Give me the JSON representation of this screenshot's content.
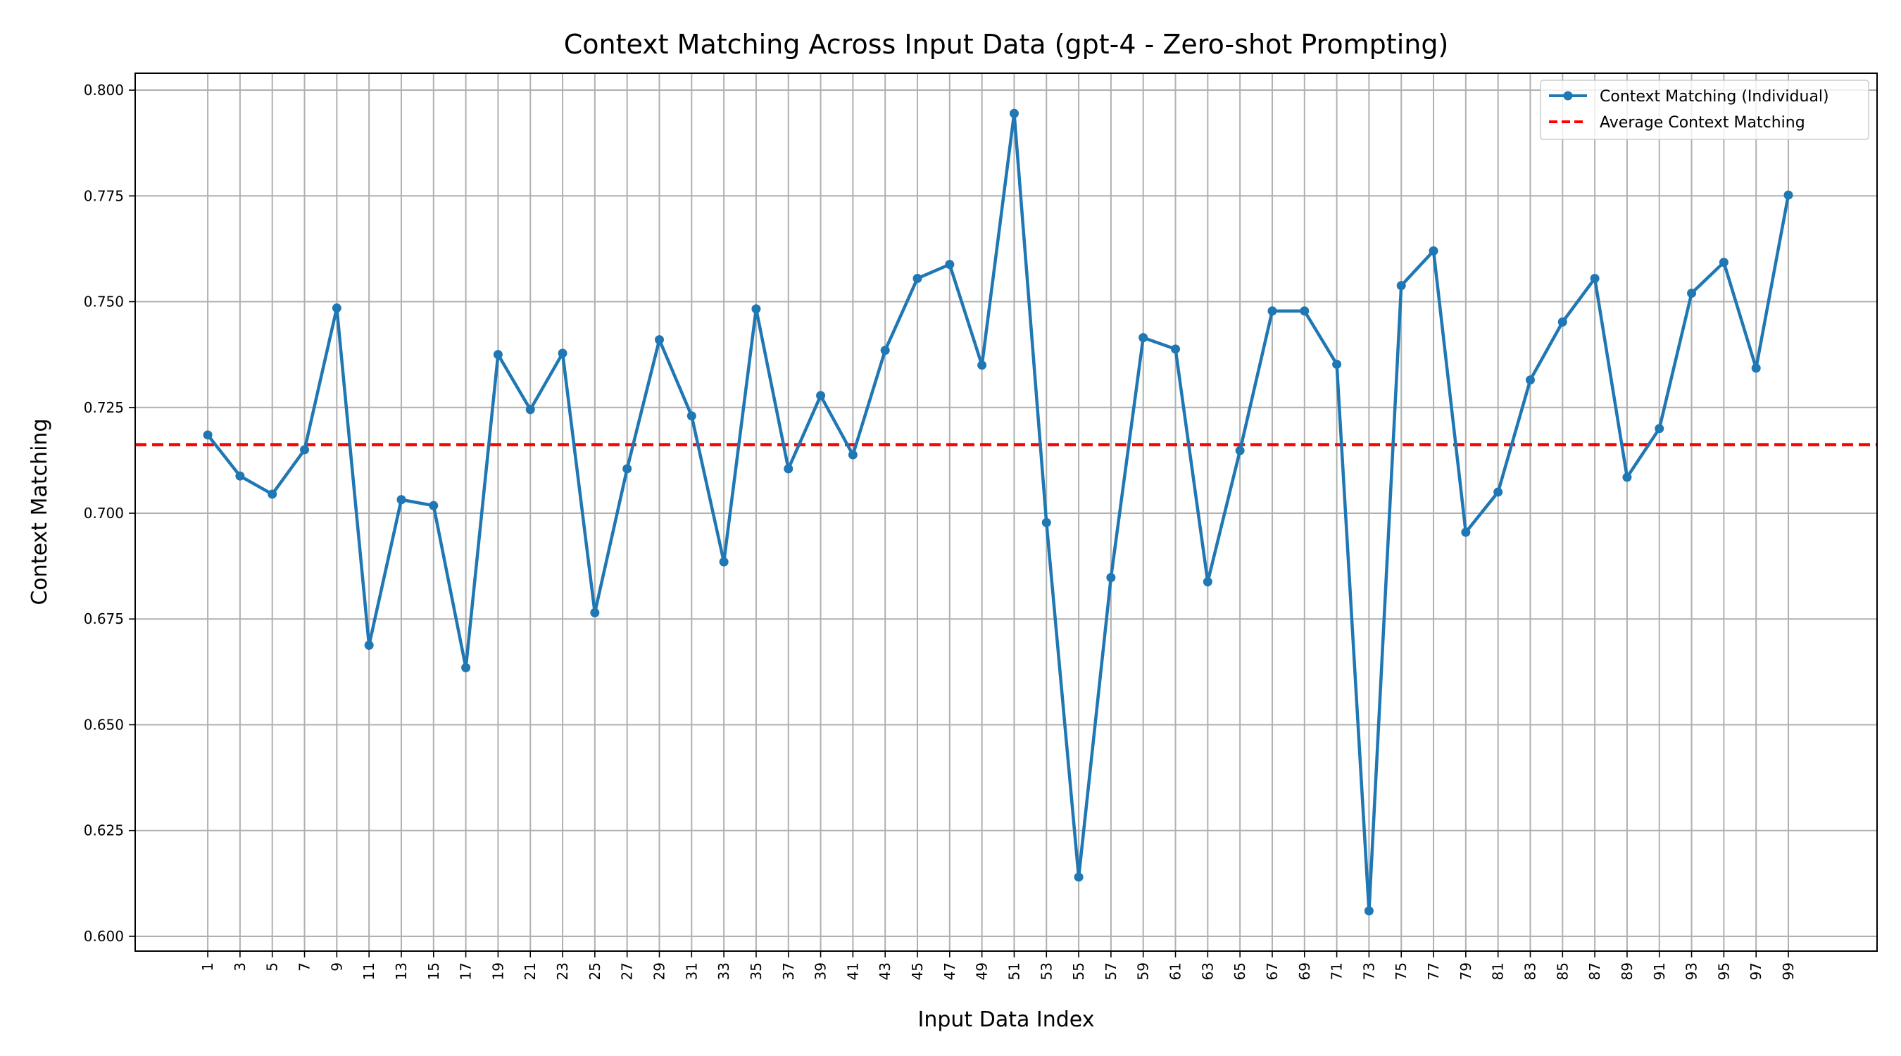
{
  "chart_data": {
    "type": "line",
    "title": "Context Matching Across Input Data (gpt-4 - Zero-shot Prompting)",
    "xlabel": "Input Data Index",
    "ylabel": "Context Matching",
    "x": [
      1,
      3,
      5,
      7,
      9,
      11,
      13,
      15,
      17,
      19,
      21,
      23,
      25,
      27,
      29,
      31,
      33,
      35,
      37,
      39,
      41,
      43,
      45,
      47,
      49,
      51,
      53,
      55,
      57,
      59,
      61,
      63,
      65,
      67,
      69,
      71,
      73,
      75,
      77,
      79,
      81,
      83,
      85,
      87,
      89,
      91,
      93,
      95,
      97,
      99
    ],
    "x_ticks": [
      "1",
      "3",
      "5",
      "7",
      "9",
      "11",
      "13",
      "15",
      "17",
      "19",
      "21",
      "23",
      "25",
      "27",
      "29",
      "31",
      "33",
      "35",
      "37",
      "39",
      "41",
      "43",
      "45",
      "47",
      "49",
      "51",
      "53",
      "55",
      "57",
      "59",
      "61",
      "63",
      "65",
      "67",
      "69",
      "71",
      "73",
      "75",
      "77",
      "79",
      "81",
      "83",
      "85",
      "87",
      "89",
      "91",
      "93",
      "95",
      "97",
      "99"
    ],
    "xlim": [
      -3.5,
      104.5
    ],
    "ylim": [
      0.5965,
      0.804
    ],
    "y_ticks": [
      "0.600",
      "0.625",
      "0.650",
      "0.675",
      "0.700",
      "0.725",
      "0.750",
      "0.775",
      "0.800"
    ],
    "y_tick_values": [
      0.6,
      0.625,
      0.65,
      0.675,
      0.7,
      0.725,
      0.75,
      0.775,
      0.8
    ],
    "grid": true,
    "legend_position": "top-right",
    "series": [
      {
        "name": "Context Matching (Individual)",
        "color": "#1f77b4",
        "style": "solid-with-markers",
        "values": [
          0.7185,
          0.7088,
          0.7045,
          0.715,
          0.7485,
          0.6688,
          0.7032,
          0.7018,
          0.6635,
          0.7375,
          0.7245,
          0.7378,
          0.6765,
          0.7105,
          0.741,
          0.723,
          0.6885,
          0.7483,
          0.7105,
          0.7278,
          0.7138,
          0.7385,
          0.7555,
          0.7588,
          0.735,
          0.7945,
          0.6978,
          0.614,
          0.6848,
          0.7415,
          0.7388,
          0.6838,
          0.7148,
          0.7478,
          0.7478,
          0.7352,
          0.606,
          0.7538,
          0.762,
          0.6955,
          0.705,
          0.7315,
          0.7452,
          0.7555,
          0.7085,
          0.72,
          0.752,
          0.7593,
          0.7343,
          0.7752
        ]
      },
      {
        "name": "Average Context Matching",
        "color": "#ff0000",
        "style": "dashed",
        "value": 0.7162
      }
    ]
  }
}
